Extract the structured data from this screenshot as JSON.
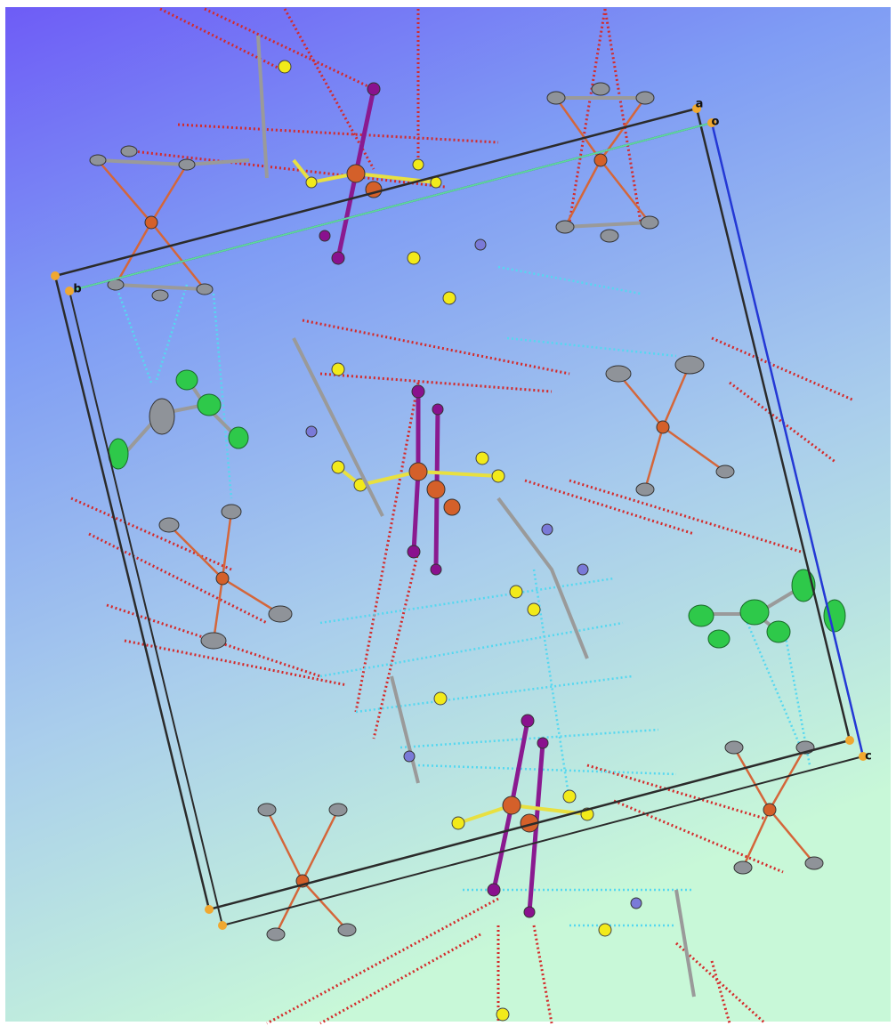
{
  "axis_labels": {
    "a": "a",
    "o": "o",
    "b": "b",
    "c": "c"
  }
}
